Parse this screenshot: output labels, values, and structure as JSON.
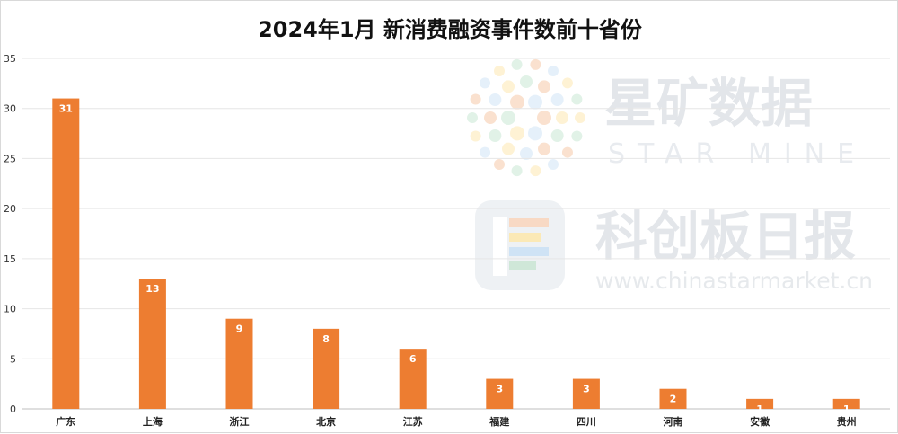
{
  "chart_data": {
    "type": "bar",
    "title": "2024年1月 新消费融资事件数前十省份",
    "categories": [
      "广东",
      "上海",
      "浙江",
      "北京",
      "江苏",
      "福建",
      "四川",
      "河南",
      "安徽",
      "贵州"
    ],
    "values": [
      31,
      13,
      9,
      8,
      6,
      3,
      3,
      2,
      1,
      1
    ],
    "ylim": [
      0,
      35
    ],
    "yticks": [
      0,
      5,
      10,
      15,
      20,
      25,
      30,
      35
    ],
    "grid": true,
    "legend": "none",
    "bar_color": "#ED7D31",
    "xlabel": "",
    "ylabel": ""
  },
  "watermark": {
    "brand_cn": "星矿数据",
    "brand_en": "STAR MINE",
    "sub_cn": "科创板日报",
    "url": "www.chinastarmarket.cn",
    "colors": [
      "#f5c9a8",
      "#cfe3f5",
      "#fde8b0",
      "#c9e7d3"
    ]
  }
}
